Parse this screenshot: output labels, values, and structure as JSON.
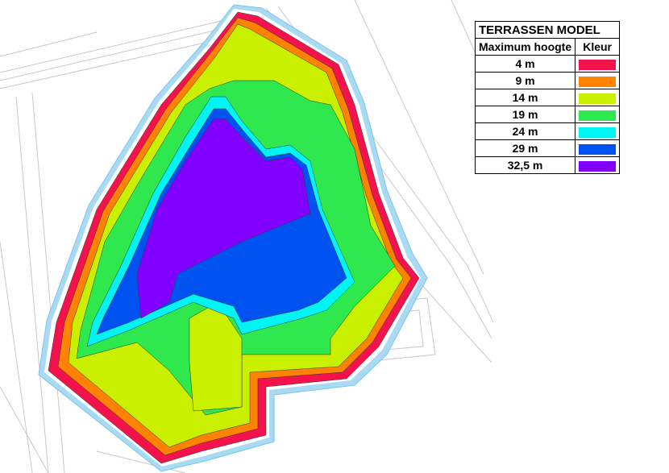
{
  "legend": {
    "title": "TERRASSEN MODEL",
    "headers": [
      "Maximum hoogte",
      "Kleur"
    ],
    "rows": [
      {
        "label": "4 m",
        "color": "#f4124c"
      },
      {
        "label": "9 m",
        "color": "#ff8200"
      },
      {
        "label": "14 m",
        "color": "#c8f000"
      },
      {
        "label": "19 m",
        "color": "#2ee84e"
      },
      {
        "label": "24 m",
        "color": "#00f4f4"
      },
      {
        "label": "29 m",
        "color": "#0052f0"
      },
      {
        "label": "32,5 m",
        "color": "#8200ff"
      }
    ]
  }
}
